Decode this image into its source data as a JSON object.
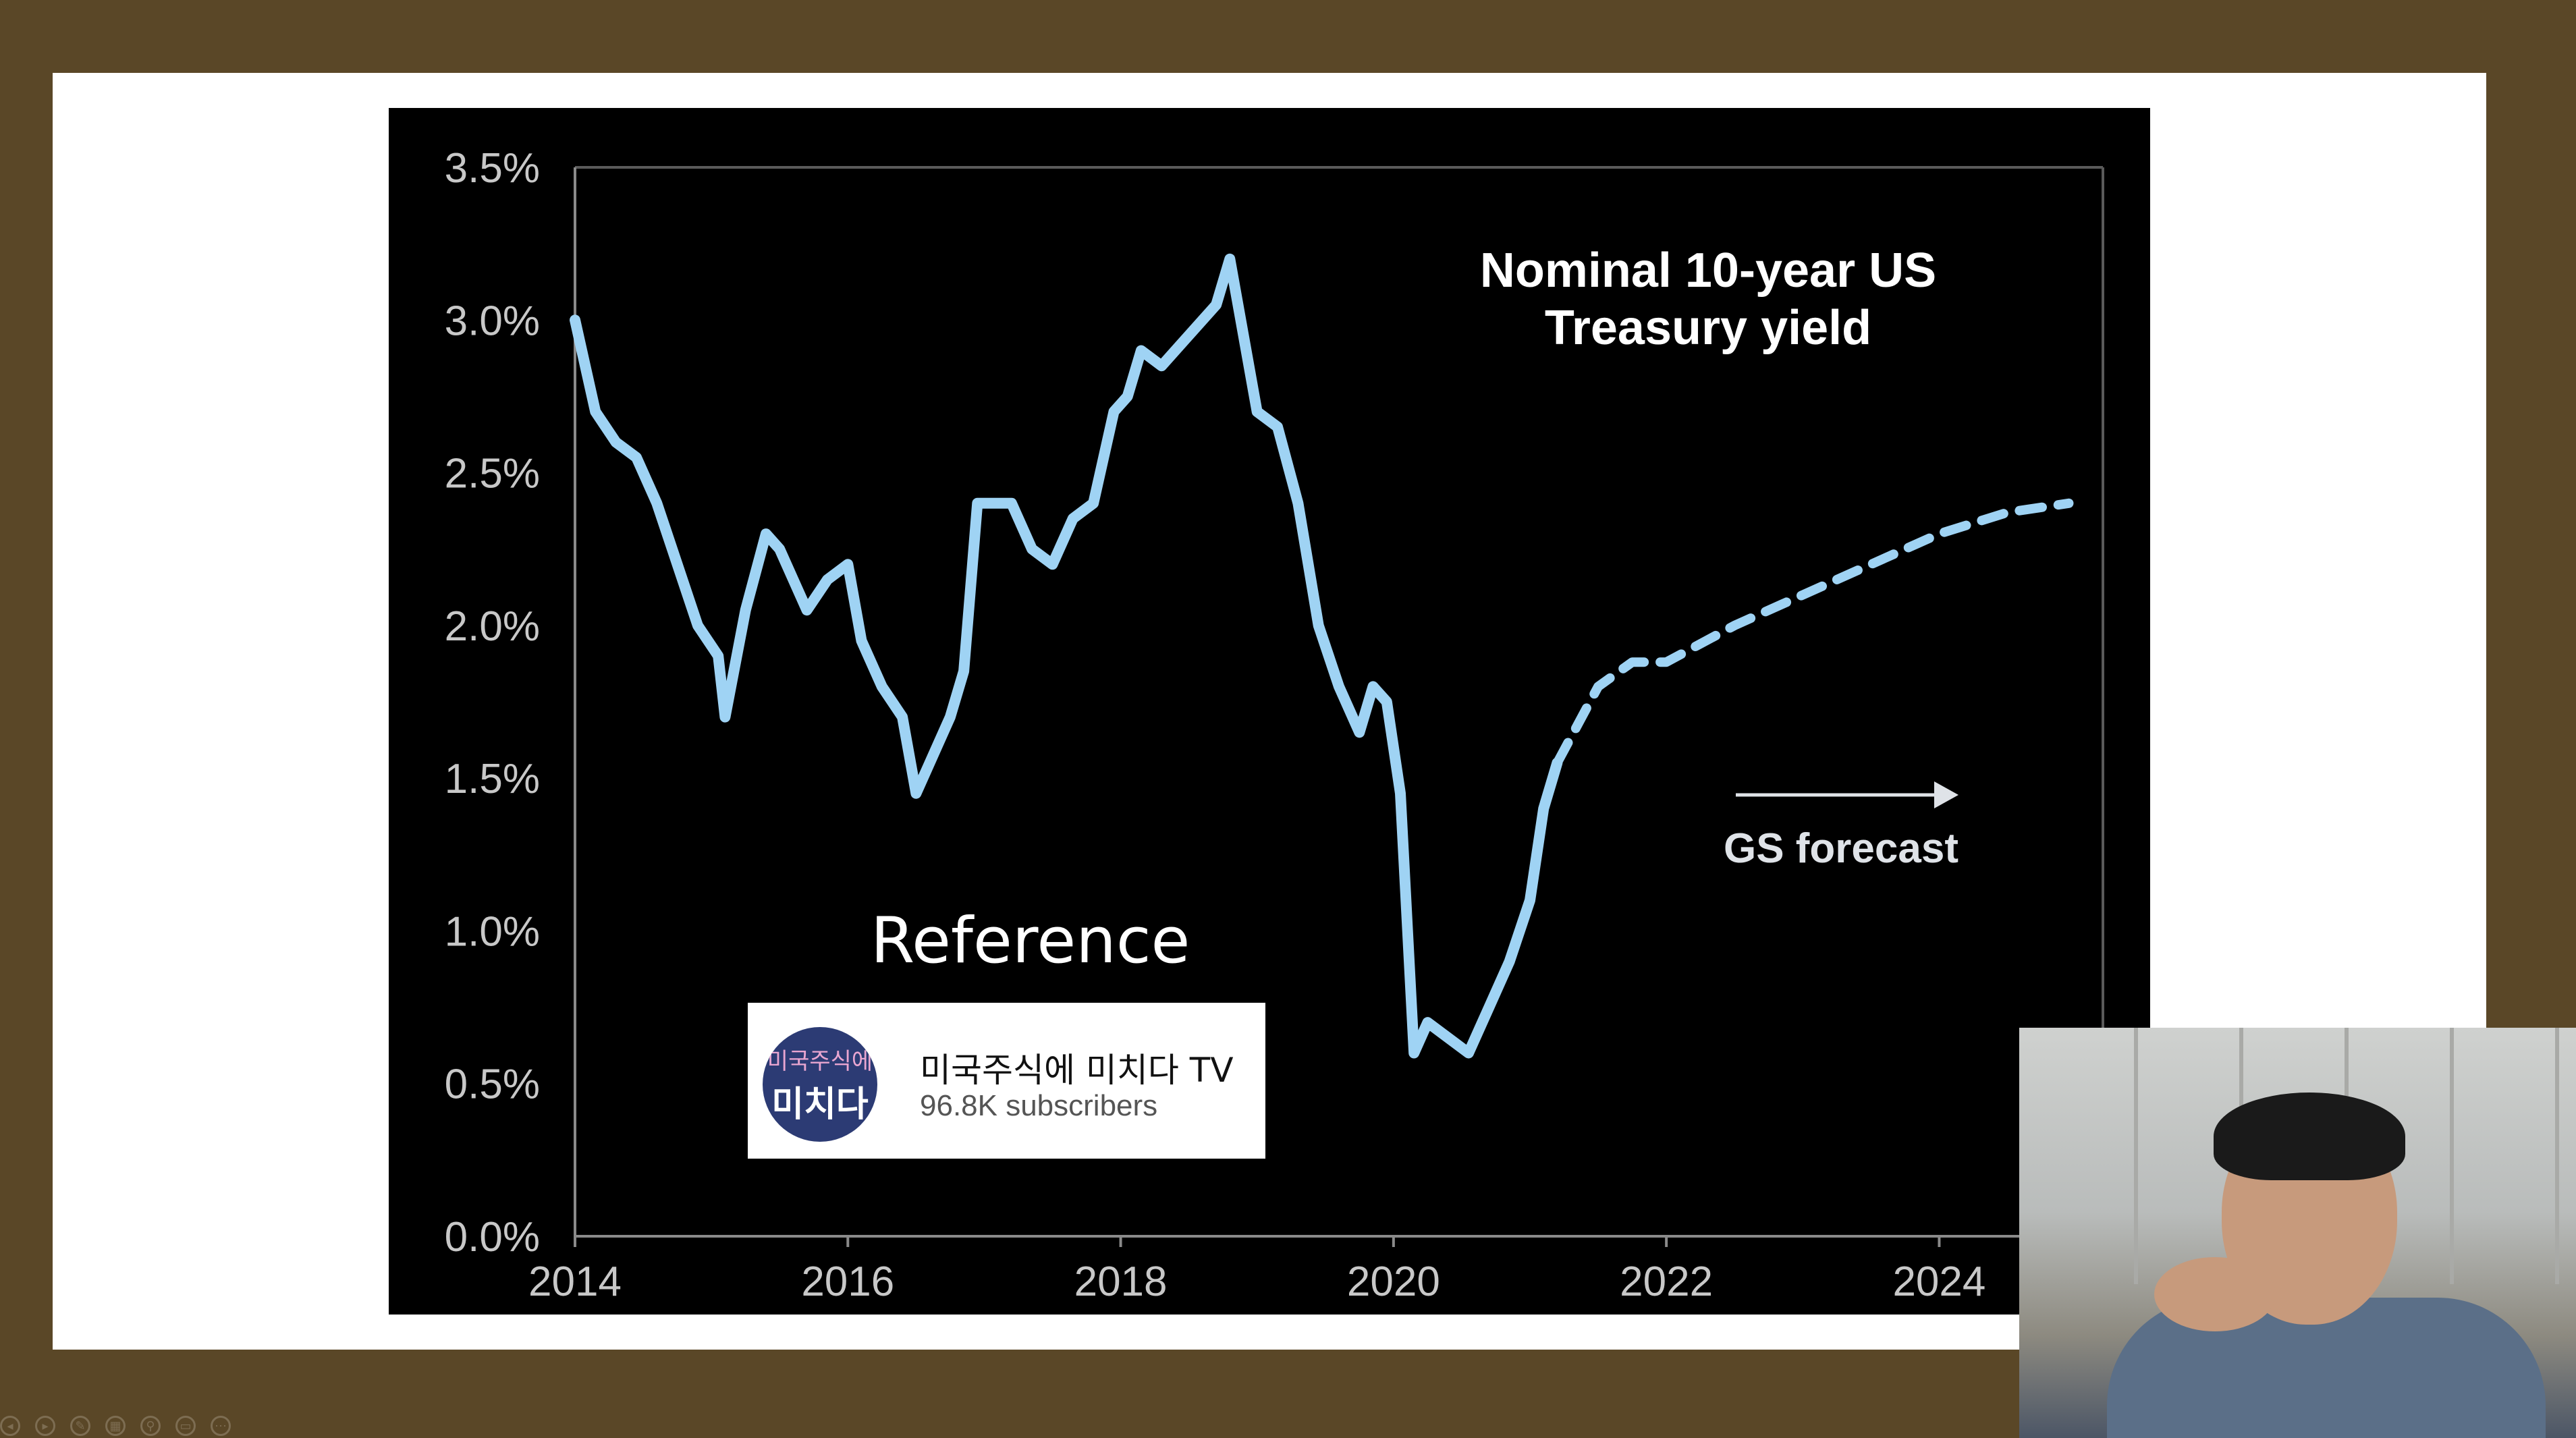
{
  "chart_data": {
    "type": "line",
    "title": "Nominal 10-year US Treasury yield",
    "title_lines": [
      "Nominal 10-year US",
      "Treasury yield"
    ],
    "x_tick_labels": [
      "2014",
      "2016",
      "2018",
      "2020",
      "2022",
      "2024"
    ],
    "y_tick_labels": [
      "0.0%",
      "0.5%",
      "1.0%",
      "1.5%",
      "2.0%",
      "2.5%",
      "3.0%",
      "3.5%"
    ],
    "xlim": [
      2014,
      2025.2
    ],
    "ylim": [
      0,
      3.5
    ],
    "grid": false,
    "series": [
      {
        "style": "solid",
        "color": "#9fd3f4",
        "x": [
          2014.0,
          2014.15,
          2014.3,
          2014.45,
          2014.6,
          2014.75,
          2014.9,
          2015.05,
          2015.1,
          2015.25,
          2015.4,
          2015.5,
          2015.7,
          2015.85,
          2016.0,
          2016.1,
          2016.25,
          2016.4,
          2016.5,
          2016.6,
          2016.75,
          2016.85,
          2016.95,
          2017.2,
          2017.35,
          2017.5,
          2017.65,
          2017.8,
          2017.95,
          2018.05,
          2018.15,
          2018.3,
          2018.5,
          2018.7,
          2018.8,
          2018.9,
          2019.0,
          2019.15,
          2019.3,
          2019.45,
          2019.6,
          2019.75,
          2019.85,
          2019.95,
          2020.05,
          2020.15,
          2020.25,
          2020.4,
          2020.55,
          2020.7,
          2020.85,
          2021.0,
          2021.1,
          2021.2
        ],
        "values": [
          3.0,
          2.7,
          2.6,
          2.55,
          2.4,
          2.2,
          2.0,
          1.9,
          1.7,
          2.05,
          2.3,
          2.25,
          2.05,
          2.15,
          2.2,
          1.95,
          1.8,
          1.7,
          1.45,
          1.55,
          1.7,
          1.85,
          2.4,
          2.4,
          2.25,
          2.2,
          2.35,
          2.4,
          2.7,
          2.75,
          2.9,
          2.85,
          2.95,
          3.05,
          3.2,
          2.95,
          2.7,
          2.65,
          2.4,
          2.0,
          1.8,
          1.65,
          1.8,
          1.75,
          1.45,
          0.6,
          0.7,
          0.65,
          0.6,
          0.75,
          0.9,
          1.1,
          1.4,
          1.55
        ]
      },
      {
        "style": "dashed",
        "color": "#9fd3f4",
        "x": [
          2021.2,
          2021.5,
          2021.75,
          2022.0,
          2022.5,
          2023.0,
          2023.5,
          2024.0,
          2024.5,
          2024.95
        ],
        "values": [
          1.55,
          1.8,
          1.88,
          1.88,
          2.0,
          2.1,
          2.2,
          2.3,
          2.37,
          2.4
        ]
      }
    ],
    "annotation": {
      "text": "GS forecast",
      "arrow": "right"
    }
  },
  "overlay": {
    "reference_label": "Reference",
    "channel": {
      "avatar_line1": "미국주식에",
      "avatar_line2": "미치다",
      "name": "미국주식에 미치다 TV",
      "subscribers": "96.8K subscribers"
    }
  },
  "presenter_controls": [
    "◂",
    "▸",
    "✎",
    "▦",
    "⚲",
    "▭",
    "⋯"
  ]
}
